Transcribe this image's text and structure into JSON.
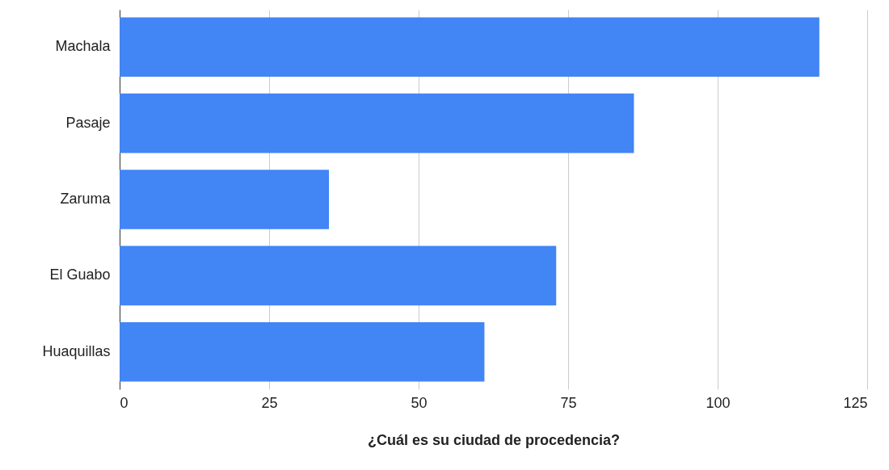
{
  "chart_data": {
    "type": "bar",
    "orientation": "horizontal",
    "xlabel": "¿Cuál es su ciudad de procedencia?",
    "categories": [
      "Machala",
      "Pasaje",
      "Zaruma",
      "El Guabo",
      "Huaquillas"
    ],
    "values": [
      117,
      86,
      35,
      73,
      61
    ],
    "color": "#4285f4",
    "xlim": [
      0,
      125
    ],
    "xticks": [
      0,
      25,
      50,
      75,
      100,
      125
    ],
    "grid": "x"
  }
}
